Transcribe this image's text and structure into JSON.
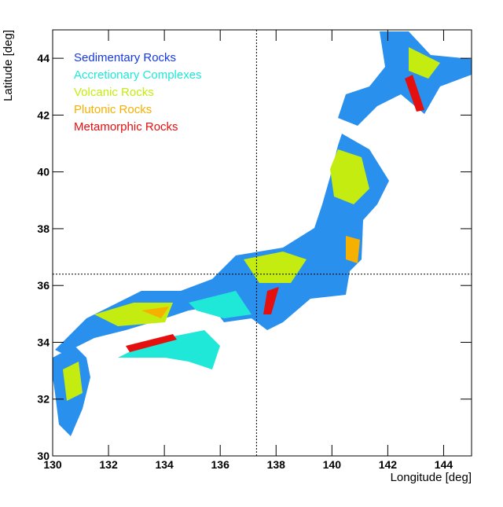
{
  "chart_data": {
    "type": "map",
    "x_label": "Longitude [deg]",
    "y_label": "Latitude [deg]",
    "xlim": [
      130,
      145
    ],
    "ylim": [
      30,
      45
    ],
    "xticks": [
      130,
      132,
      134,
      136,
      138,
      140,
      142,
      144
    ],
    "yticks": [
      30,
      32,
      34,
      36,
      38,
      40,
      42,
      44
    ],
    "crosshair": {
      "x": 137.3,
      "y": 36.4
    },
    "series": [
      {
        "name": "Sedimentary Rocks",
        "color": "#1638e0"
      },
      {
        "name": "Accretionary Complexes",
        "color": "#20e8d8"
      },
      {
        "name": "Volcanic Rocks",
        "color": "#c4ec10"
      },
      {
        "name": "Plutonic Rocks",
        "color": "#f6b000"
      },
      {
        "name": "Metamorphic Rocks",
        "color": "#e41010"
      }
    ]
  }
}
